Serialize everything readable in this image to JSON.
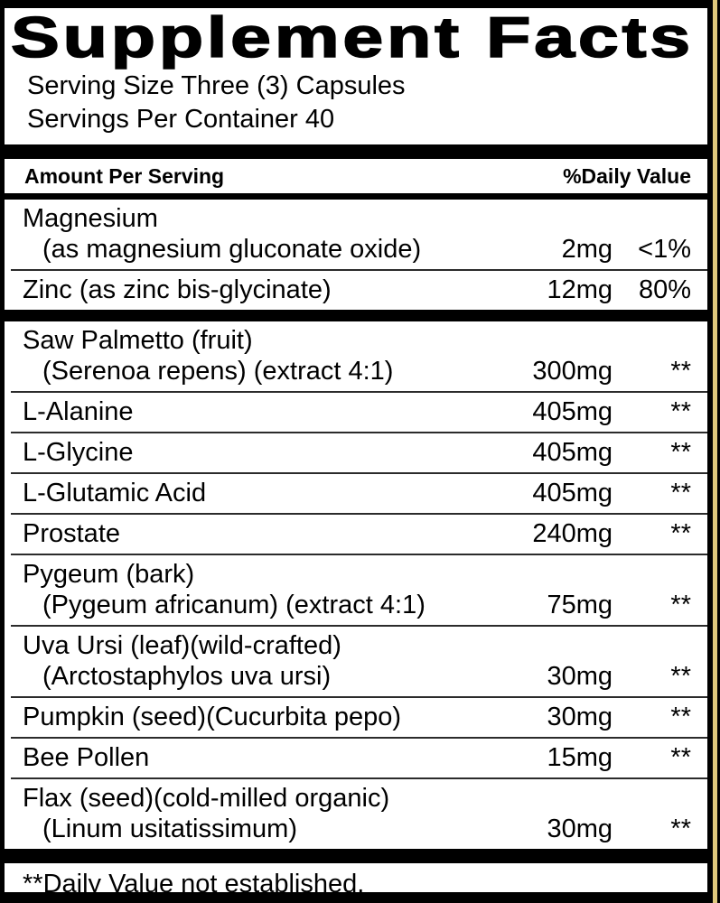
{
  "colors": {
    "paper": "#ffffff",
    "ink": "#000000",
    "edge_gold": "#dfc87c"
  },
  "label": {
    "title": "Supplement Facts",
    "serving_size": "Serving Size Three (3) Capsules",
    "servings_per_container": "Servings Per Container 40",
    "footnote": "**Daily Value not established."
  },
  "columns": {
    "amount_header": "Amount Per Serving",
    "dv_header": "%Daily Value"
  },
  "sections": [
    {
      "rows": [
        {
          "name": "Magnesium",
          "detail": "(as magnesium gluconate oxide)",
          "amount": "2mg",
          "dv": "<1%"
        },
        {
          "name": "Zinc (as zinc bis-glycinate)",
          "amount": "12mg",
          "dv": "80%"
        }
      ]
    },
    {
      "rows": [
        {
          "name": "Saw Palmetto (fruit)",
          "detail": "(Serenoa repens) (extract 4:1)",
          "amount": "300mg",
          "dv": "**"
        },
        {
          "name": "L-Alanine",
          "amount": "405mg",
          "dv": "**"
        },
        {
          "name": "L-Glycine",
          "amount": "405mg",
          "dv": "**"
        },
        {
          "name": "L-Glutamic Acid",
          "amount": "405mg",
          "dv": "**"
        },
        {
          "name": "Prostate",
          "amount": "240mg",
          "dv": "**"
        },
        {
          "name": "Pygeum (bark)",
          "detail": "(Pygeum africanum) (extract 4:1)",
          "amount": "75mg",
          "dv": "**"
        },
        {
          "name": "Uva Ursi (leaf)(wild-crafted)",
          "detail": "(Arctostaphylos uva ursi)",
          "amount": "30mg",
          "dv": "**"
        },
        {
          "name": "Pumpkin (seed)(Cucurbita pepo)",
          "amount": "30mg",
          "dv": "**"
        },
        {
          "name": "Bee Pollen",
          "amount": "15mg",
          "dv": "**"
        },
        {
          "name": "Flax (seed)(cold-milled organic)",
          "detail": "(Linum usitatissimum)",
          "amount": "30mg",
          "dv": "**"
        }
      ]
    }
  ]
}
